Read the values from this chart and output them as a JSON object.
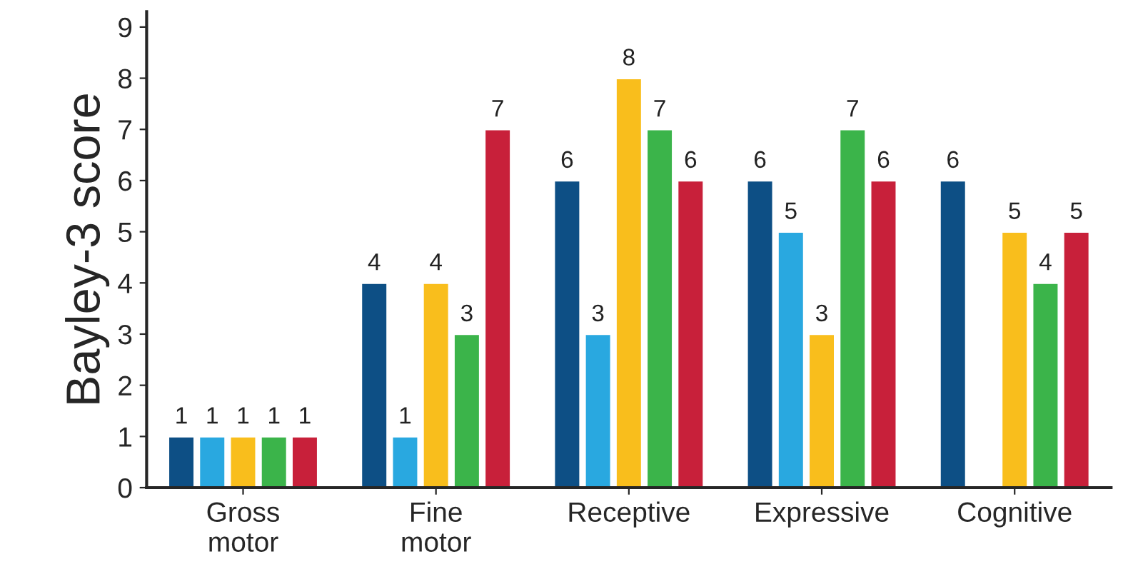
{
  "chart_data": {
    "type": "bar",
    "ylabel": "Bayley-3 score",
    "categories": [
      "Gross\nmotor",
      "Fine\nmotor",
      "Receptive",
      "Expressive",
      "Cognitive"
    ],
    "series": [
      {
        "color": "#0d4f85",
        "values": [
          1,
          4,
          6,
          6,
          6
        ]
      },
      {
        "color": "#29a8e0",
        "values": [
          1,
          1,
          3,
          5,
          null
        ]
      },
      {
        "color": "#f9be1c",
        "values": [
          1,
          4,
          8,
          3,
          5
        ]
      },
      {
        "color": "#3bb44a",
        "values": [
          1,
          3,
          7,
          7,
          4
        ]
      },
      {
        "color": "#c8203a",
        "values": [
          1,
          7,
          6,
          6,
          5
        ]
      }
    ],
    "ylim": [
      0,
      9.3
    ],
    "yticks": [
      0,
      1,
      2,
      3,
      4,
      5,
      6,
      7,
      8,
      9
    ],
    "data_labels": true,
    "grid": false,
    "legend": false
  }
}
